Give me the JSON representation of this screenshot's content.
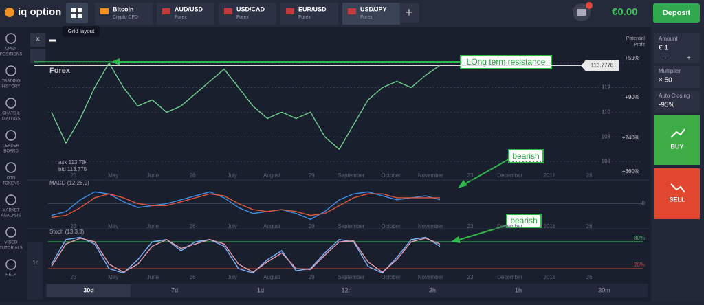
{
  "header": {
    "logo": "iq option",
    "tooltip": "Grid layout",
    "tabs": [
      {
        "name": "Bitcoin",
        "sub": "Crypto CFD"
      },
      {
        "name": "AUD/USD",
        "sub": "Forex"
      },
      {
        "name": "USD/CAD",
        "sub": "Forex"
      },
      {
        "name": "EUR/USD",
        "sub": "Forex"
      },
      {
        "name": "USD/JPY",
        "sub": "Forex"
      }
    ],
    "balance": "€0.00",
    "deposit": "Deposit"
  },
  "sidebar": [
    [
      "OPEN",
      "POSITIONS"
    ],
    [
      "TRADING",
      "HISTORY"
    ],
    [
      "CHATS &",
      "DIALOGS"
    ],
    [
      "LEADER",
      "BOARD"
    ],
    [
      "OTN",
      "TOKENS"
    ],
    [
      "MARKET",
      "ANALYSIS"
    ],
    [
      "VIDEO",
      "TUTORIALS"
    ],
    [
      "HELP"
    ]
  ],
  "trade_panel": {
    "amount_label": "Amount",
    "amount": "€ 1",
    "minus": "-",
    "plus": "+",
    "multiplier_label": "Multiplier",
    "multiplier": "× 50",
    "auto_label": "Auto Closing",
    "auto": "-95%",
    "buy": "BUY",
    "sell": "SELL"
  },
  "instrument": "Forex",
  "potential_profit": [
    "Potential",
    "Profit"
  ],
  "profit_levels": [
    "+59%",
    "+90%",
    "+240%",
    "+360%"
  ],
  "ask": "ask 113.784",
  "bid": "bid 113.775",
  "time_axis": [
    "23",
    "May",
    "June",
    "26",
    "July",
    "August",
    "29",
    "September",
    "October",
    "November",
    "23",
    "December",
    "2018",
    "26"
  ],
  "timeframes": [
    "30d",
    "7d",
    "1d",
    "12h",
    "3h",
    "1h",
    "30m"
  ],
  "side_scale": "1d",
  "chart_data": [
    {
      "type": "line",
      "ylim": [
        104.9,
        115.2
      ],
      "yticks": [
        106,
        108,
        110,
        112,
        114
      ],
      "current_price": 113.7778,
      "resistance": 114.1,
      "annotations": [
        "LOng term resistance",
        "bearish",
        "bearish"
      ],
      "series": [
        {
          "color": "#6fd08a",
          "values": [
            110,
            107.5,
            109.5,
            112,
            114,
            112,
            110.5,
            111,
            110,
            110.5,
            111.5,
            112.5,
            113.5,
            112,
            110.5,
            109.5,
            110,
            109.5,
            110,
            108,
            107,
            109,
            111,
            112,
            112.5,
            112,
            113,
            113.8
          ]
        }
      ]
    },
    {
      "type": "line",
      "title": "MACD (12,26,9)",
      "ylim": [
        -1,
        1
      ],
      "yticks": [
        0
      ],
      "series": [
        {
          "color": "#3f8fe8",
          "values": [
            -0.6,
            -0.4,
            0.2,
            0.6,
            0.5,
            0.1,
            -0.2,
            -0.1,
            0.0,
            0.2,
            0.4,
            0.6,
            0.3,
            -0.2,
            -0.5,
            -0.4,
            -0.3,
            -0.5,
            -0.8,
            -0.4,
            0.2,
            0.5,
            0.6,
            0.4,
            0.2,
            0.3,
            0.4,
            0.2
          ]
        },
        {
          "color": "#e0583a",
          "values": [
            -0.7,
            -0.6,
            -0.2,
            0.3,
            0.5,
            0.3,
            0.0,
            -0.1,
            -0.1,
            0.1,
            0.3,
            0.5,
            0.4,
            0.0,
            -0.3,
            -0.4,
            -0.3,
            -0.4,
            -0.6,
            -0.5,
            -0.1,
            0.3,
            0.5,
            0.5,
            0.3,
            0.3,
            0.3,
            0.3
          ]
        }
      ]
    },
    {
      "type": "line",
      "title": "Stoch (13,3,3)",
      "ylim": [
        0,
        100
      ],
      "yticks": [
        {
          "value": 80,
          "label": "80%"
        },
        {
          "value": 20,
          "label": "20%"
        }
      ],
      "series": [
        {
          "color": "#7fb3ff",
          "values": [
            30,
            85,
            90,
            75,
            20,
            10,
            40,
            80,
            85,
            60,
            80,
            85,
            70,
            20,
            10,
            40,
            60,
            15,
            20,
            55,
            85,
            80,
            25,
            10,
            45,
            85,
            90,
            70
          ]
        },
        {
          "color": "#e6a0b0",
          "values": [
            25,
            75,
            88,
            80,
            30,
            12,
            30,
            70,
            85,
            65,
            75,
            85,
            75,
            30,
            12,
            35,
            55,
            20,
            18,
            50,
            80,
            82,
            35,
            12,
            40,
            80,
            88,
            75
          ]
        }
      ]
    }
  ]
}
